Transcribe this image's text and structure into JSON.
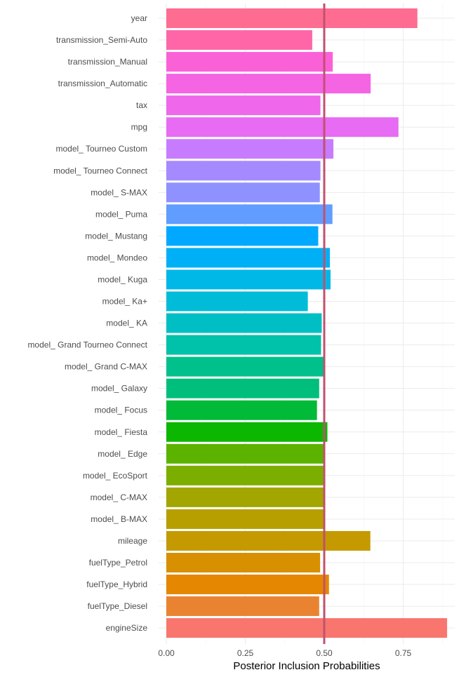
{
  "chart_data": {
    "type": "bar",
    "orientation": "horizontal",
    "title": "",
    "xlabel": "Posterior Inclusion Probabilities",
    "ylabel": "",
    "xlim": [
      0,
      0.89
    ],
    "xticks": [
      0,
      0.25,
      0.5,
      0.75
    ],
    "xtick_labels": [
      "0.00",
      "0.25",
      "0.50",
      "0.75"
    ],
    "grid": true,
    "legend": "none",
    "reference_line": {
      "value": 0.5,
      "color": "#C2506E"
    },
    "categories": [
      "year",
      "transmission_Semi-Auto",
      "transmission_Manual",
      "transmission_Automatic",
      "tax",
      "mpg",
      "model_ Tourneo Custom",
      "model_ Tourneo Connect",
      "model_ S-MAX",
      "model_ Puma",
      "model_ Mustang",
      "model_ Mondeo",
      "model_ Kuga",
      "model_ Ka+",
      "model_ KA",
      "model_ Grand Tourneo Connect",
      "model_ Grand C-MAX",
      "model_ Galaxy",
      "model_ Focus",
      "model_ Fiesta",
      "model_ Edge",
      "model_ EcoSport",
      "model_ C-MAX",
      "model_ B-MAX",
      "mileage",
      "fuelType_Petrol",
      "fuelType_Hybrid",
      "fuelType_Diesel",
      "engineSize"
    ],
    "values": [
      0.795,
      0.462,
      0.527,
      0.647,
      0.488,
      0.735,
      0.529,
      0.488,
      0.486,
      0.526,
      0.481,
      0.518,
      0.52,
      0.448,
      0.492,
      0.49,
      0.502,
      0.484,
      0.477,
      0.51,
      0.501,
      0.503,
      0.502,
      0.5,
      0.646,
      0.487,
      0.515,
      0.484,
      0.889
    ],
    "colors": [
      "#FF6C91",
      "#FF66A8",
      "#FB61D7",
      "#F564E3",
      "#EF67EB",
      "#E76BF3",
      "#C77CFF",
      "#A58AFF",
      "#8F91FF",
      "#619CFF",
      "#00A9FF",
      "#00B0F6",
      "#00B8E7",
      "#00BCD8",
      "#00BFC4",
      "#00C1AA",
      "#00C08B",
      "#00BF7D",
      "#00BA38",
      "#0CB702",
      "#5BB300",
      "#7CAE00",
      "#A3A500",
      "#B79F00",
      "#C49A00",
      "#D89000",
      "#E58700",
      "#EA8331",
      "#F8766D"
    ]
  }
}
